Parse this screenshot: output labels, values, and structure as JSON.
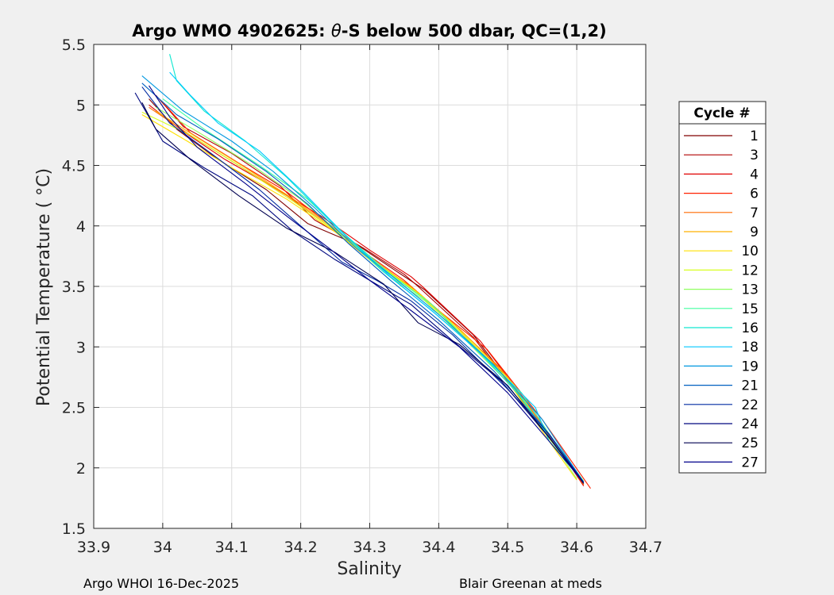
{
  "chart_data": {
    "type": "line",
    "title_prefix": "Argo WMO 4902625: ",
    "title_symbol": "θ",
    "title_suffix": "-S below 500 dbar,  QC=(1,2)",
    "xlabel": "Salinity",
    "ylabel": "Potential Temperature ( °C)",
    "xlim": [
      33.9,
      34.7
    ],
    "ylim": [
      1.5,
      5.5
    ],
    "xticks": [
      33.9,
      34.0,
      34.1,
      34.2,
      34.3,
      34.4,
      34.5,
      34.6,
      34.7
    ],
    "xtick_labels": [
      "33.9",
      "34",
      "34.1",
      "34.2",
      "34.3",
      "34.4",
      "34.5",
      "34.6",
      "34.7"
    ],
    "yticks": [
      1.5,
      2.0,
      2.5,
      3.0,
      3.5,
      4.0,
      4.5,
      5.0,
      5.5
    ],
    "ytick_labels": [
      "1.5",
      "2",
      "2.5",
      "3",
      "3.5",
      "4",
      "4.5",
      "5",
      "5.5"
    ],
    "grid": true,
    "legend_title": "Cycle #",
    "legend_position": "right",
    "series": [
      {
        "name": "1",
        "color": "#800000",
        "points": [
          [
            33.98,
            5.05
          ],
          [
            34.02,
            4.8
          ],
          [
            34.08,
            4.55
          ],
          [
            34.15,
            4.3
          ],
          [
            34.21,
            4.02
          ],
          [
            34.28,
            3.85
          ],
          [
            34.34,
            3.62
          ],
          [
            34.38,
            3.47
          ],
          [
            34.45,
            3.1
          ],
          [
            34.53,
            2.5
          ],
          [
            34.61,
            1.86
          ]
        ]
      },
      {
        "name": "3",
        "color": "#b00000",
        "points": [
          [
            33.99,
            5.08
          ],
          [
            34.03,
            4.82
          ],
          [
            34.1,
            4.6
          ],
          [
            34.17,
            4.33
          ],
          [
            34.22,
            4.05
          ],
          [
            34.29,
            3.82
          ],
          [
            34.35,
            3.6
          ],
          [
            34.37,
            3.5
          ],
          [
            34.45,
            3.08
          ],
          [
            34.53,
            2.49
          ],
          [
            34.61,
            1.87
          ]
        ]
      },
      {
        "name": "4",
        "color": "#e00000",
        "points": [
          [
            33.98,
            5.0
          ],
          [
            34.03,
            4.78
          ],
          [
            34.09,
            4.55
          ],
          [
            34.16,
            4.32
          ],
          [
            34.23,
            4.08
          ],
          [
            34.3,
            3.8
          ],
          [
            34.36,
            3.58
          ],
          [
            34.38,
            3.48
          ],
          [
            34.46,
            3.05
          ],
          [
            34.54,
            2.45
          ],
          [
            34.61,
            1.85
          ]
        ]
      },
      {
        "name": "6",
        "color": "#ff2000",
        "points": [
          [
            34.0,
            5.02
          ],
          [
            34.04,
            4.77
          ],
          [
            34.11,
            4.52
          ],
          [
            34.18,
            4.28
          ],
          [
            34.24,
            4.02
          ],
          [
            34.3,
            3.75
          ],
          [
            34.35,
            3.55
          ],
          [
            34.4,
            3.3
          ],
          [
            34.47,
            2.98
          ],
          [
            34.55,
            2.4
          ],
          [
            34.62,
            1.83
          ]
        ]
      },
      {
        "name": "7",
        "color": "#ff6a00",
        "points": [
          [
            33.98,
            4.98
          ],
          [
            34.04,
            4.75
          ],
          [
            34.11,
            4.5
          ],
          [
            34.18,
            4.25
          ],
          [
            34.24,
            4.0
          ],
          [
            34.3,
            3.72
          ],
          [
            34.36,
            3.5
          ],
          [
            34.42,
            3.2
          ],
          [
            34.49,
            2.82
          ],
          [
            34.56,
            2.28
          ],
          [
            34.61,
            1.86
          ]
        ]
      },
      {
        "name": "9",
        "color": "#ffb000",
        "points": [
          [
            33.99,
            4.95
          ],
          [
            34.05,
            4.73
          ],
          [
            34.12,
            4.48
          ],
          [
            34.19,
            4.22
          ],
          [
            34.25,
            3.97
          ],
          [
            34.31,
            3.7
          ],
          [
            34.37,
            3.45
          ],
          [
            34.43,
            3.15
          ],
          [
            34.5,
            2.75
          ],
          [
            34.56,
            2.25
          ],
          [
            34.61,
            1.88
          ]
        ]
      },
      {
        "name": "10",
        "color": "#ffe000",
        "points": [
          [
            33.97,
            4.92
          ],
          [
            34.03,
            4.72
          ],
          [
            34.1,
            4.48
          ],
          [
            34.18,
            4.22
          ],
          [
            34.25,
            3.95
          ],
          [
            34.31,
            3.68
          ],
          [
            34.37,
            3.44
          ],
          [
            34.43,
            3.13
          ],
          [
            34.5,
            2.72
          ],
          [
            34.56,
            2.22
          ],
          [
            34.6,
            1.9
          ]
        ]
      },
      {
        "name": "12",
        "color": "#d8ff20",
        "points": [
          [
            33.97,
            4.94
          ],
          [
            34.04,
            4.75
          ],
          [
            34.11,
            4.5
          ],
          [
            34.19,
            4.2
          ],
          [
            34.26,
            3.92
          ],
          [
            34.32,
            3.65
          ],
          [
            34.38,
            3.4
          ],
          [
            34.44,
            3.08
          ],
          [
            34.51,
            2.68
          ],
          [
            34.56,
            2.24
          ],
          [
            34.61,
            1.89
          ]
        ]
      },
      {
        "name": "13",
        "color": "#90ff60",
        "points": [
          [
            33.99,
            4.98
          ],
          [
            34.05,
            4.78
          ],
          [
            34.13,
            4.5
          ],
          [
            34.2,
            4.22
          ],
          [
            34.26,
            3.92
          ],
          [
            34.32,
            3.62
          ],
          [
            34.38,
            3.38
          ],
          [
            34.44,
            3.05
          ],
          [
            34.51,
            2.65
          ],
          [
            34.56,
            2.25
          ],
          [
            34.6,
            1.91
          ]
        ]
      },
      {
        "name": "15",
        "color": "#40ffa0",
        "points": [
          [
            34.0,
            5.05
          ],
          [
            34.06,
            4.8
          ],
          [
            34.14,
            4.5
          ],
          [
            34.21,
            4.22
          ],
          [
            34.27,
            3.9
          ],
          [
            34.33,
            3.6
          ],
          [
            34.39,
            3.35
          ],
          [
            34.45,
            3.0
          ],
          [
            34.52,
            2.62
          ],
          [
            34.56,
            2.28
          ],
          [
            34.61,
            1.89
          ]
        ]
      },
      {
        "name": "16",
        "color": "#10e8d0",
        "points": [
          [
            34.01,
            5.42
          ],
          [
            34.02,
            5.2
          ],
          [
            34.06,
            4.95
          ],
          [
            34.12,
            4.7
          ],
          [
            34.18,
            4.4
          ],
          [
            34.25,
            4.0
          ],
          [
            34.32,
            3.62
          ],
          [
            34.39,
            3.3
          ],
          [
            34.46,
            2.95
          ],
          [
            34.52,
            2.58
          ],
          [
            34.56,
            2.25
          ],
          [
            34.61,
            1.88
          ]
        ]
      },
      {
        "name": "18",
        "color": "#00c8ff",
        "points": [
          [
            34.01,
            5.27
          ],
          [
            34.04,
            5.08
          ],
          [
            34.08,
            4.85
          ],
          [
            34.14,
            4.62
          ],
          [
            34.2,
            4.3
          ],
          [
            34.26,
            3.95
          ],
          [
            34.33,
            3.58
          ],
          [
            34.4,
            3.25
          ],
          [
            34.47,
            2.9
          ],
          [
            34.54,
            2.5
          ],
          [
            34.56,
            2.22
          ],
          [
            34.61,
            1.88
          ]
        ]
      },
      {
        "name": "19",
        "color": "#0098e0",
        "points": [
          [
            33.97,
            5.24
          ],
          [
            34.03,
            4.95
          ],
          [
            34.1,
            4.7
          ],
          [
            34.16,
            4.45
          ],
          [
            34.22,
            4.15
          ],
          [
            34.28,
            3.82
          ],
          [
            34.34,
            3.55
          ],
          [
            34.41,
            3.22
          ],
          [
            34.48,
            2.85
          ],
          [
            34.55,
            2.4
          ],
          [
            34.61,
            1.88
          ]
        ]
      },
      {
        "name": "21",
        "color": "#0060c0",
        "points": [
          [
            33.97,
            5.18
          ],
          [
            34.02,
            4.92
          ],
          [
            34.08,
            4.72
          ],
          [
            34.15,
            4.45
          ],
          [
            34.21,
            4.18
          ],
          [
            34.27,
            3.85
          ],
          [
            34.33,
            3.55
          ],
          [
            34.4,
            3.22
          ],
          [
            34.48,
            2.8
          ],
          [
            34.55,
            2.35
          ],
          [
            34.61,
            1.88
          ]
        ]
      },
      {
        "name": "22",
        "color": "#002aa0",
        "points": [
          [
            33.97,
            5.15
          ],
          [
            34.01,
            4.85
          ],
          [
            34.07,
            4.6
          ],
          [
            34.14,
            4.3
          ],
          [
            34.2,
            4.0
          ],
          [
            34.26,
            3.7
          ],
          [
            34.31,
            3.55
          ],
          [
            34.36,
            3.38
          ],
          [
            34.42,
            3.1
          ],
          [
            34.5,
            2.65
          ],
          [
            34.56,
            2.28
          ],
          [
            34.61,
            1.88
          ]
        ]
      },
      {
        "name": "24",
        "color": "#000880",
        "points": [
          [
            33.96,
            5.1
          ],
          [
            34.0,
            4.7
          ],
          [
            34.06,
            4.48
          ],
          [
            34.13,
            4.25
          ],
          [
            34.19,
            3.95
          ],
          [
            34.25,
            3.72
          ],
          [
            34.3,
            3.55
          ],
          [
            34.36,
            3.35
          ],
          [
            34.42,
            3.05
          ],
          [
            34.49,
            2.72
          ],
          [
            34.56,
            2.25
          ],
          [
            34.61,
            1.88
          ]
        ]
      },
      {
        "name": "25",
        "color": "#000050",
        "points": [
          [
            33.97,
            5.02
          ],
          [
            33.99,
            4.8
          ],
          [
            34.04,
            4.55
          ],
          [
            34.11,
            4.25
          ],
          [
            34.18,
            3.98
          ],
          [
            34.25,
            3.78
          ],
          [
            34.32,
            3.52
          ],
          [
            34.37,
            3.2
          ],
          [
            34.43,
            3.02
          ],
          [
            34.5,
            2.68
          ],
          [
            34.56,
            2.25
          ],
          [
            34.61,
            1.87
          ]
        ]
      },
      {
        "name": "27",
        "color": "#00008b",
        "points": [
          [
            33.98,
            5.16
          ],
          [
            34.01,
            4.9
          ],
          [
            34.05,
            4.65
          ],
          [
            34.12,
            4.35
          ],
          [
            34.18,
            4.08
          ],
          [
            34.24,
            3.82
          ],
          [
            34.3,
            3.55
          ],
          [
            34.36,
            3.3
          ],
          [
            34.43,
            3.0
          ],
          [
            34.5,
            2.62
          ],
          [
            34.56,
            2.22
          ],
          [
            34.61,
            1.88
          ]
        ]
      }
    ]
  },
  "footer": {
    "left": "Argo WHOI 16-Dec-2025",
    "right": "Blair Greenan at meds"
  }
}
